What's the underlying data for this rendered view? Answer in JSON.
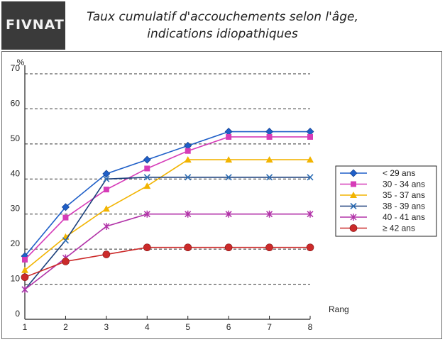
{
  "header": {
    "logo_text": "FIVNAT",
    "title_line1": "Taux cumulatif d'accouchements selon l'âge,",
    "title_line2": "indications idiopathiques"
  },
  "chart_data": {
    "type": "line",
    "title": "Taux cumulatif d'accouchements selon l'âge, indications idiopathiques",
    "xlabel": "Rang",
    "ylabel": "%",
    "x": [
      1,
      2,
      3,
      4,
      5,
      6,
      7,
      8
    ],
    "xlim": [
      1,
      8
    ],
    "ylim": [
      0,
      70
    ],
    "yticks": [
      0,
      10,
      20,
      30,
      40,
      50,
      60,
      70
    ],
    "grid": "horizontal dashed",
    "legend_position": "right",
    "series": [
      {
        "name": "< 29 ans",
        "color": "#1f5fc8",
        "marker": "diamond",
        "values": [
          18,
          32,
          41.5,
          45.5,
          49.5,
          53.5,
          53.5,
          53.5
        ]
      },
      {
        "name": "30 - 34 ans",
        "color": "#d63cb8",
        "marker": "square",
        "values": [
          17,
          29,
          37,
          43,
          48,
          52,
          52,
          52
        ]
      },
      {
        "name": "35 - 37 ans",
        "color": "#f2b400",
        "marker": "triangle",
        "values": [
          14,
          23.5,
          31.5,
          38,
          45.5,
          45.5,
          45.5,
          45.5
        ]
      },
      {
        "name": "38 - 39 ans",
        "color": "#1a3f7a",
        "marker": "x",
        "values": [
          8.5,
          22.5,
          40,
          40.5,
          40.5,
          40.5,
          40.5,
          40.5
        ]
      },
      {
        "name": "40 - 41 ans",
        "color": "#b233a8",
        "marker": "star",
        "values": [
          8.5,
          17.5,
          26.5,
          30,
          30,
          30,
          30,
          30
        ]
      },
      {
        "name": "≥ 42 ans",
        "color": "#cc2a2a",
        "marker": "circle",
        "values": [
          12,
          16.5,
          18.5,
          20.5,
          20.5,
          20.5,
          20.5,
          20.5
        ]
      }
    ]
  }
}
